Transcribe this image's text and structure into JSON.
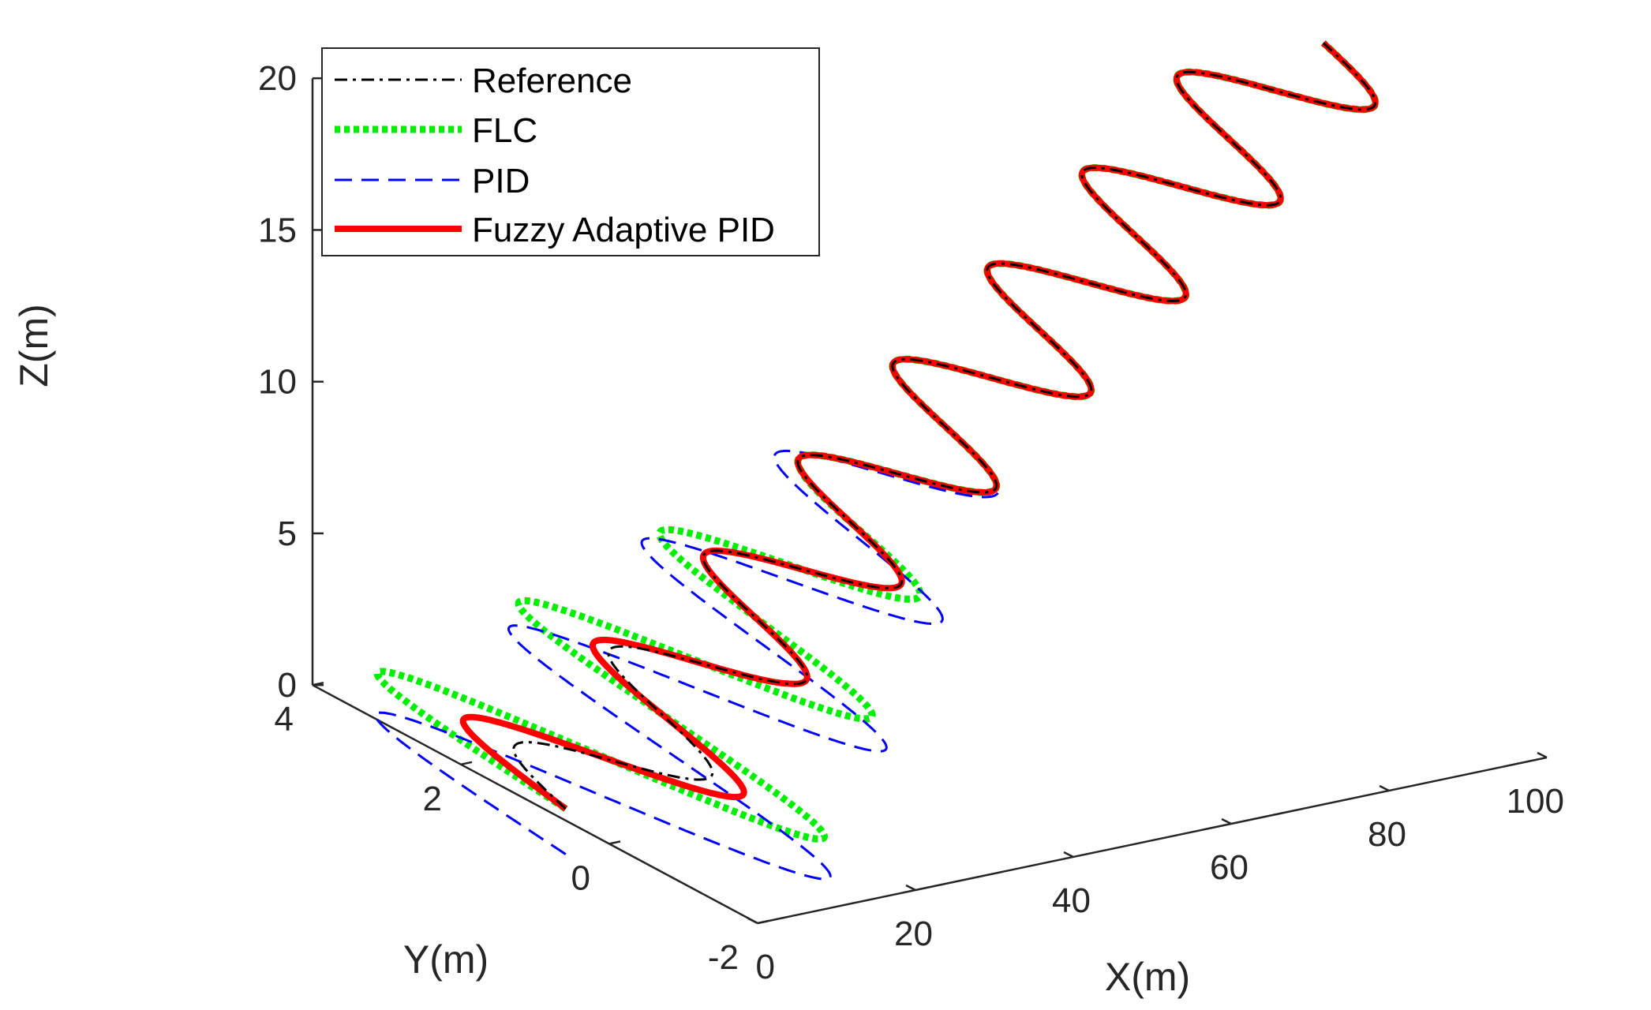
{
  "chart_data": {
    "type": "line",
    "projection": "3d",
    "title": "",
    "xlabel": "X(m)",
    "ylabel": "Y(m)",
    "zlabel": "Z(m)",
    "xlim": [
      0,
      100
    ],
    "ylim": [
      -2,
      4
    ],
    "zlim": [
      0,
      20
    ],
    "xticks": [
      "0",
      "20",
      "40",
      "60",
      "80",
      "100"
    ],
    "yticks": [
      "-2",
      "0",
      "2",
      "4"
    ],
    "zticks": [
      "0",
      "5",
      "10",
      "15",
      "20"
    ],
    "grid": false,
    "legend_position": "top-left",
    "trajectory": {
      "x_range": [
        2,
        98
      ],
      "z_range": [
        0,
        20
      ],
      "oscillations": 8,
      "y_center": 0.8,
      "y_amplitude": 1.0
    },
    "series": [
      {
        "name": "Reference",
        "color": "#000000",
        "style": "dash-dot",
        "description": "helix x = 2..98, y = 0.8 + 1.0*sin, z = 0..20"
      },
      {
        "name": "FLC",
        "color": "#00ee00",
        "style": "dotted",
        "initial_y_amplitude": 3.0,
        "convergence_x": 40
      },
      {
        "name": "PID",
        "color": "#0000ff",
        "style": "dashed",
        "initial_y_amplitude": 3.0,
        "z_lag": 1.5,
        "convergence_x": 48
      },
      {
        "name": "Fuzzy Adaptive PID",
        "color": "#ff0000",
        "style": "solid",
        "initial_y_amplitude": 1.8,
        "convergence_x": 22
      }
    ]
  }
}
